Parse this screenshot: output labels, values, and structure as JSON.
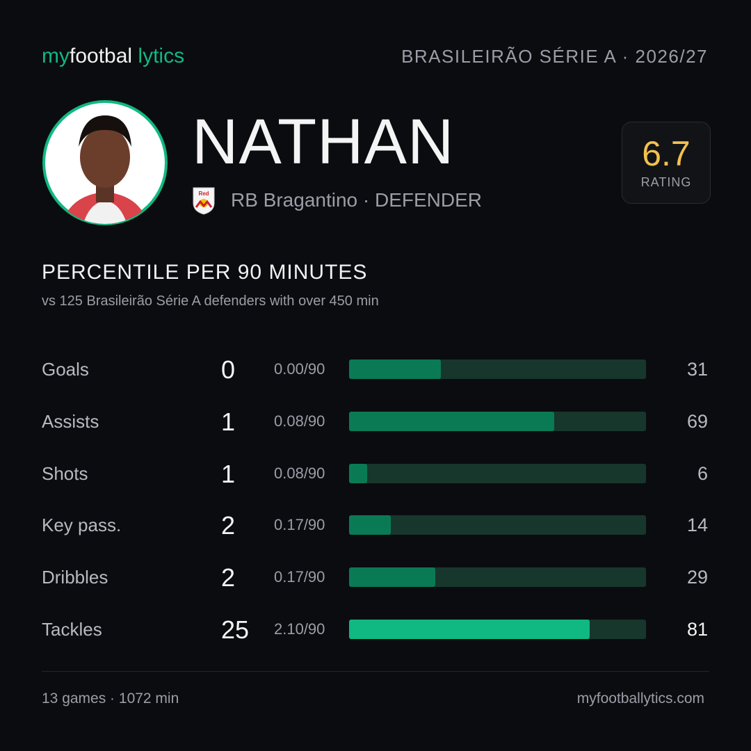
{
  "header": {
    "logo": [
      "my",
      "footbal",
      "lytics"
    ],
    "league": "BRASILEIRÃO SÉRIE A · 2026/27"
  },
  "player": {
    "name": "NATHAN",
    "club": "RB Bragantino",
    "position": "· DEFENDER",
    "rating": "6.7",
    "rating_label": "RATING"
  },
  "section": {
    "title": "PERCENTILE PER 90 MINUTES",
    "subtitle": "vs 125 Brasileirão Série A defenders with over 450 min"
  },
  "stats": [
    {
      "label": "Goals",
      "total": 0,
      "per90": "0.00/90",
      "percentile": 31,
      "color": "#0a7a55"
    },
    {
      "label": "Assists",
      "total": 1,
      "per90": "0.08/90",
      "percentile": 69,
      "color": "#0a7a55"
    },
    {
      "label": "Shots",
      "total": 1,
      "per90": "0.08/90",
      "percentile": 6,
      "color": "#0a7a55"
    },
    {
      "label": "Key pass.",
      "total": 2,
      "per90": "0.17/90",
      "percentile": 14,
      "color": "#0a7a55"
    },
    {
      "label": "Dribbles",
      "total": 2,
      "per90": "0.17/90",
      "percentile": 29,
      "color": "#0a7a55"
    },
    {
      "label": "Tackles",
      "total": 25,
      "per90": "2.10/90",
      "percentile": 81,
      "color": "#10b981"
    }
  ],
  "percentile_range": [
    0,
    100
  ],
  "track_color": "#17372c",
  "footer": {
    "games": "13 games · 1072 min",
    "site": "myfootballytics.com"
  }
}
